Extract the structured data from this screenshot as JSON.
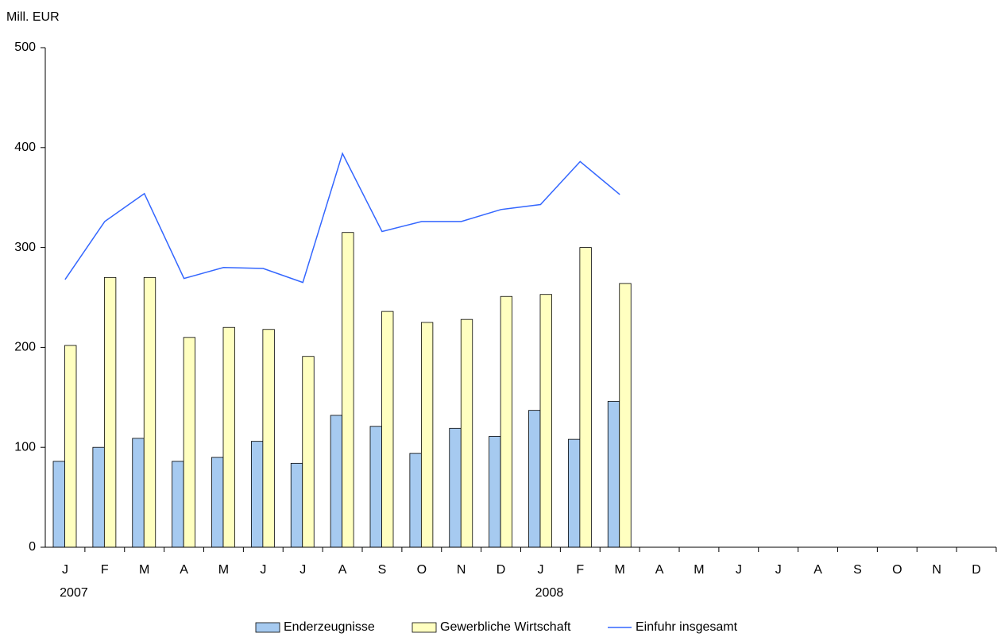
{
  "chart_data": {
    "type": "bar_line",
    "ylabel": "Mill. EUR",
    "categories": [
      "J",
      "F",
      "M",
      "A",
      "M",
      "J",
      "J",
      "A",
      "S",
      "O",
      "N",
      "D",
      "J",
      "F",
      "M",
      "A",
      "M",
      "J",
      "J",
      "A",
      "S",
      "O",
      "N",
      "D"
    ],
    "year_labels": [
      "2007",
      null,
      null,
      null,
      null,
      null,
      null,
      null,
      null,
      null,
      null,
      null,
      "2008",
      null,
      null,
      null,
      null,
      null,
      null,
      null,
      null,
      null,
      null,
      null
    ],
    "series": [
      {
        "name": "Enderzeugnisse",
        "type": "bar",
        "color": "#a6caf0",
        "values": [
          86,
          100,
          109,
          86,
          90,
          106,
          84,
          132,
          121,
          94,
          119,
          111,
          137,
          108,
          146,
          null,
          null,
          null,
          null,
          null,
          null,
          null,
          null,
          null
        ]
      },
      {
        "name": "Gewerbliche Wirtschaft",
        "type": "bar",
        "color": "#ffffc0",
        "values": [
          202,
          270,
          270,
          210,
          220,
          218,
          191,
          315,
          236,
          225,
          228,
          251,
          253,
          300,
          264,
          null,
          null,
          null,
          null,
          null,
          null,
          null,
          null,
          null
        ]
      },
      {
        "name": "Einfuhr insgesamt",
        "type": "line",
        "color": "#3366ff",
        "values": [
          268,
          326,
          354,
          269,
          280,
          279,
          265,
          394,
          316,
          326,
          326,
          338,
          343,
          386,
          353,
          null,
          null,
          null,
          null,
          null,
          null,
          null,
          null,
          null
        ]
      }
    ],
    "ylim": [
      0,
      500
    ],
    "yticks": [
      0,
      100,
      200,
      300,
      400,
      500
    ],
    "grid": false
  }
}
